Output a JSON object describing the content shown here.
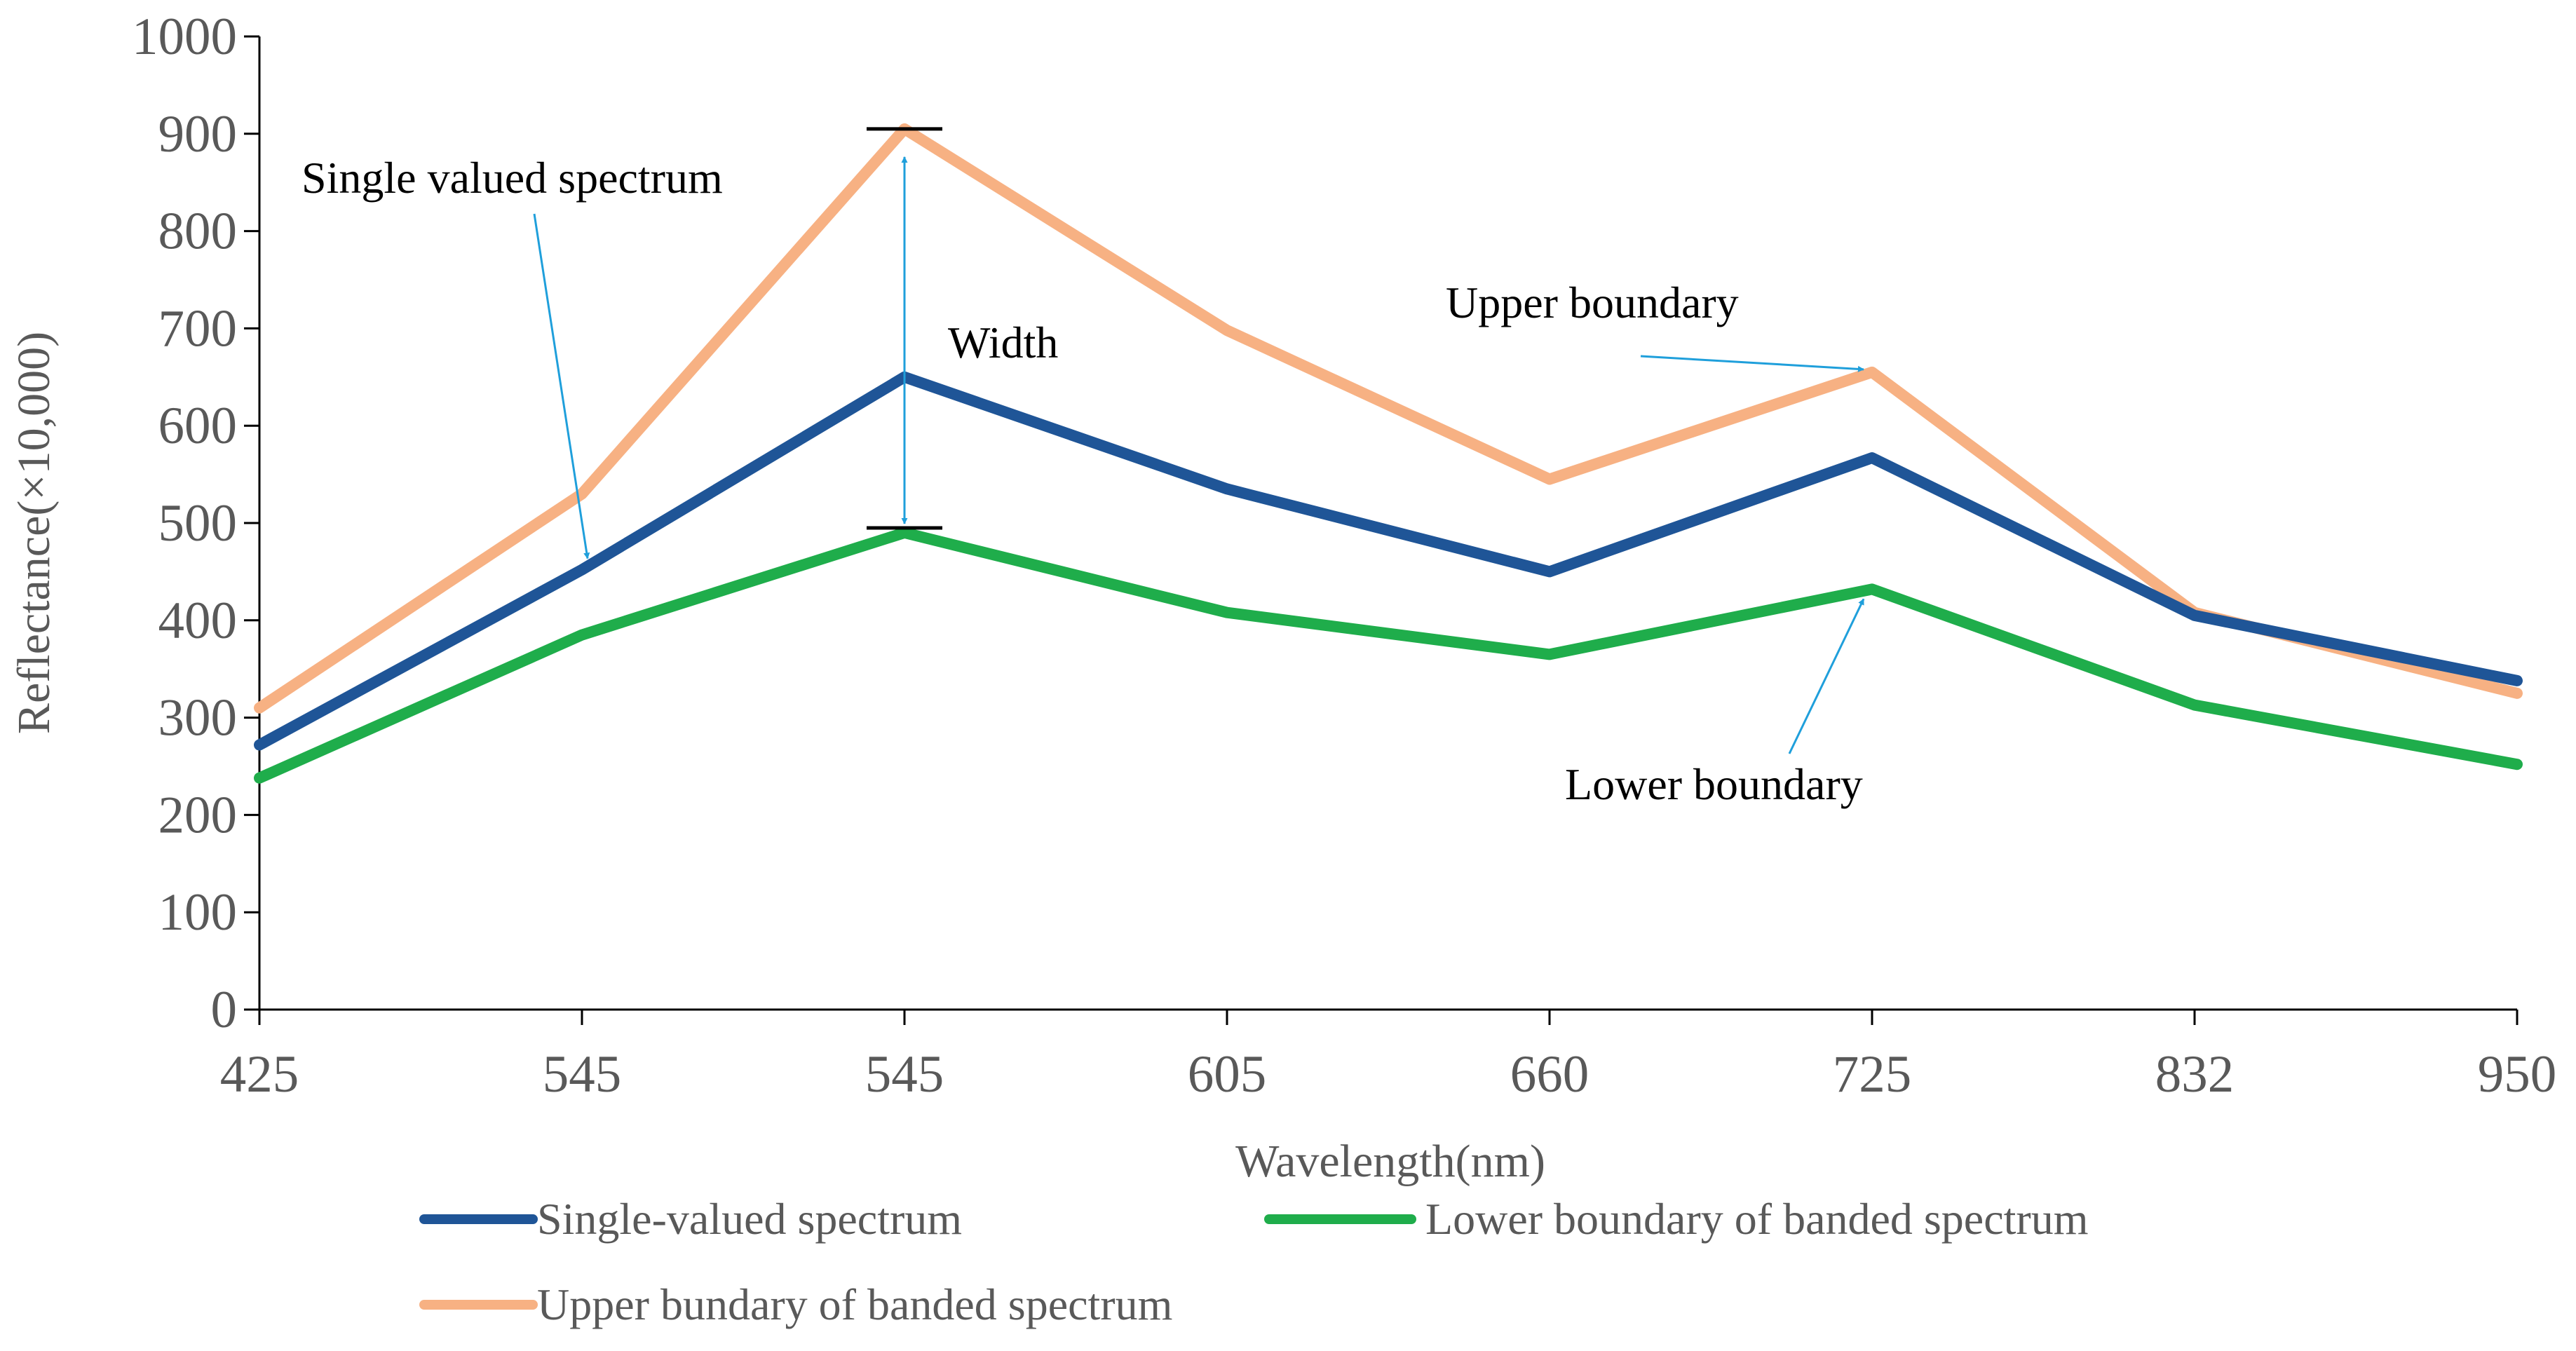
{
  "chart_data": {
    "type": "line",
    "title": "",
    "xlabel": "Wavelength(nm)",
    "ylabel": "Reflectance(×10,000)",
    "categories": [
      "425",
      "545",
      "545",
      "605",
      "660",
      "725",
      "832",
      "950"
    ],
    "ylim": [
      0,
      1000
    ],
    "yticks": [
      0,
      100,
      200,
      300,
      400,
      500,
      600,
      700,
      800,
      900,
      1000
    ],
    "grid": false,
    "legend_position": "bottom",
    "series": [
      {
        "name": "Single-valued spectrum",
        "color": "#1F5597",
        "values": [
          272,
          452,
          650,
          535,
          450,
          567,
          405,
          338
        ]
      },
      {
        "name": "Lower boundary of banded spectrum",
        "color": "#1FAD4B",
        "values": [
          238,
          385,
          490,
          408,
          365,
          432,
          313,
          252
        ]
      },
      {
        "name": "Upper bundary of banded spectrum",
        "color": "#F7B183",
        "values": [
          310,
          530,
          905,
          698,
          545,
          655,
          408,
          325
        ]
      }
    ],
    "annotations": [
      {
        "text": "Single valued spectrum",
        "points_to_series": "Single-valued spectrum",
        "points_to_category_index": 1
      },
      {
        "text": "Width",
        "category_index": 2,
        "from_value": 495,
        "to_value": 905
      },
      {
        "text": "Upper boundary",
        "points_to_series": "Upper bundary of banded spectrum",
        "points_to_category_index": 5
      },
      {
        "text": "Lower boundary",
        "points_to_series": "Lower boundary of banded spectrum",
        "points_to_category_index": 5
      }
    ],
    "annotation_arrow_color": "#1F9FDB"
  }
}
